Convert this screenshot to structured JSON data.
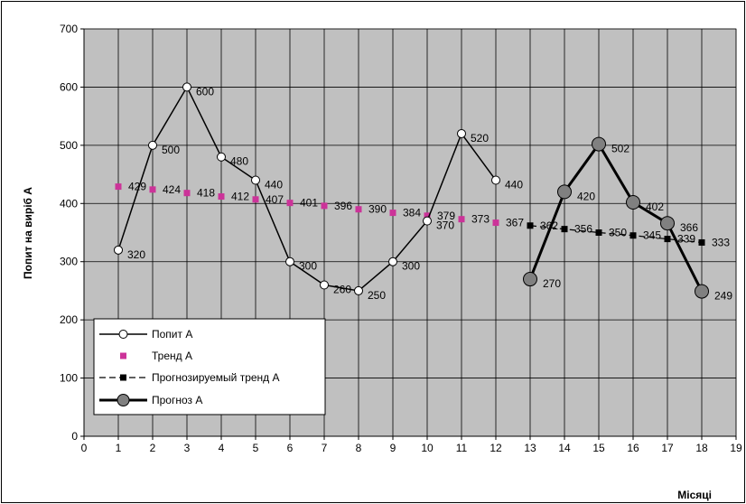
{
  "chart_data": {
    "type": "line",
    "xlabel": "Місяці",
    "ylabel": "Попит на виріб А",
    "xlim": [
      0,
      19
    ],
    "ylim": [
      0,
      700
    ],
    "x_ticks": [
      0,
      1,
      2,
      3,
      4,
      5,
      6,
      7,
      8,
      9,
      10,
      11,
      12,
      13,
      14,
      15,
      16,
      17,
      18,
      19
    ],
    "y_ticks": [
      0,
      100,
      200,
      300,
      400,
      500,
      600,
      700
    ],
    "grid": true,
    "legend_position": "bottom-left",
    "series": [
      {
        "name": "Попит А",
        "x": [
          1,
          2,
          3,
          4,
          5,
          6,
          7,
          8,
          9,
          10,
          11,
          12
        ],
        "values": [
          320,
          500,
          600,
          480,
          440,
          300,
          260,
          250,
          300,
          370,
          520,
          440
        ],
        "labels": [
          "320",
          "500",
          "600",
          "480",
          "440",
          "300",
          "260",
          "250",
          "300",
          "370",
          "520",
          "440"
        ],
        "color": "#000000"
      },
      {
        "name": "Тренд А",
        "x": [
          1,
          2,
          3,
          4,
          5,
          6,
          7,
          8,
          9,
          10,
          11,
          12
        ],
        "values": [
          429,
          424,
          418,
          412,
          407,
          401,
          396,
          390,
          384,
          379,
          373,
          367
        ],
        "labels": [
          "429",
          "424",
          "418",
          "412",
          "407",
          "401",
          "396",
          "390",
          "384",
          "379",
          "373",
          "367"
        ],
        "color": "#cc3399"
      },
      {
        "name": "Прогнозируемый тренд А",
        "x": [
          13,
          14,
          15,
          16,
          17,
          18
        ],
        "values": [
          362,
          356,
          350,
          345,
          339,
          333
        ],
        "labels": [
          "362",
          "356",
          "350",
          "345",
          "339",
          "333"
        ],
        "color": "#000000"
      },
      {
        "name": "Прогноз А",
        "x": [
          13,
          14,
          15,
          16,
          17,
          18
        ],
        "values": [
          270,
          420,
          502,
          402,
          366,
          249
        ],
        "labels": [
          "270",
          "420",
          "502",
          "402",
          "366",
          "249"
        ],
        "color": "#808080"
      }
    ]
  }
}
